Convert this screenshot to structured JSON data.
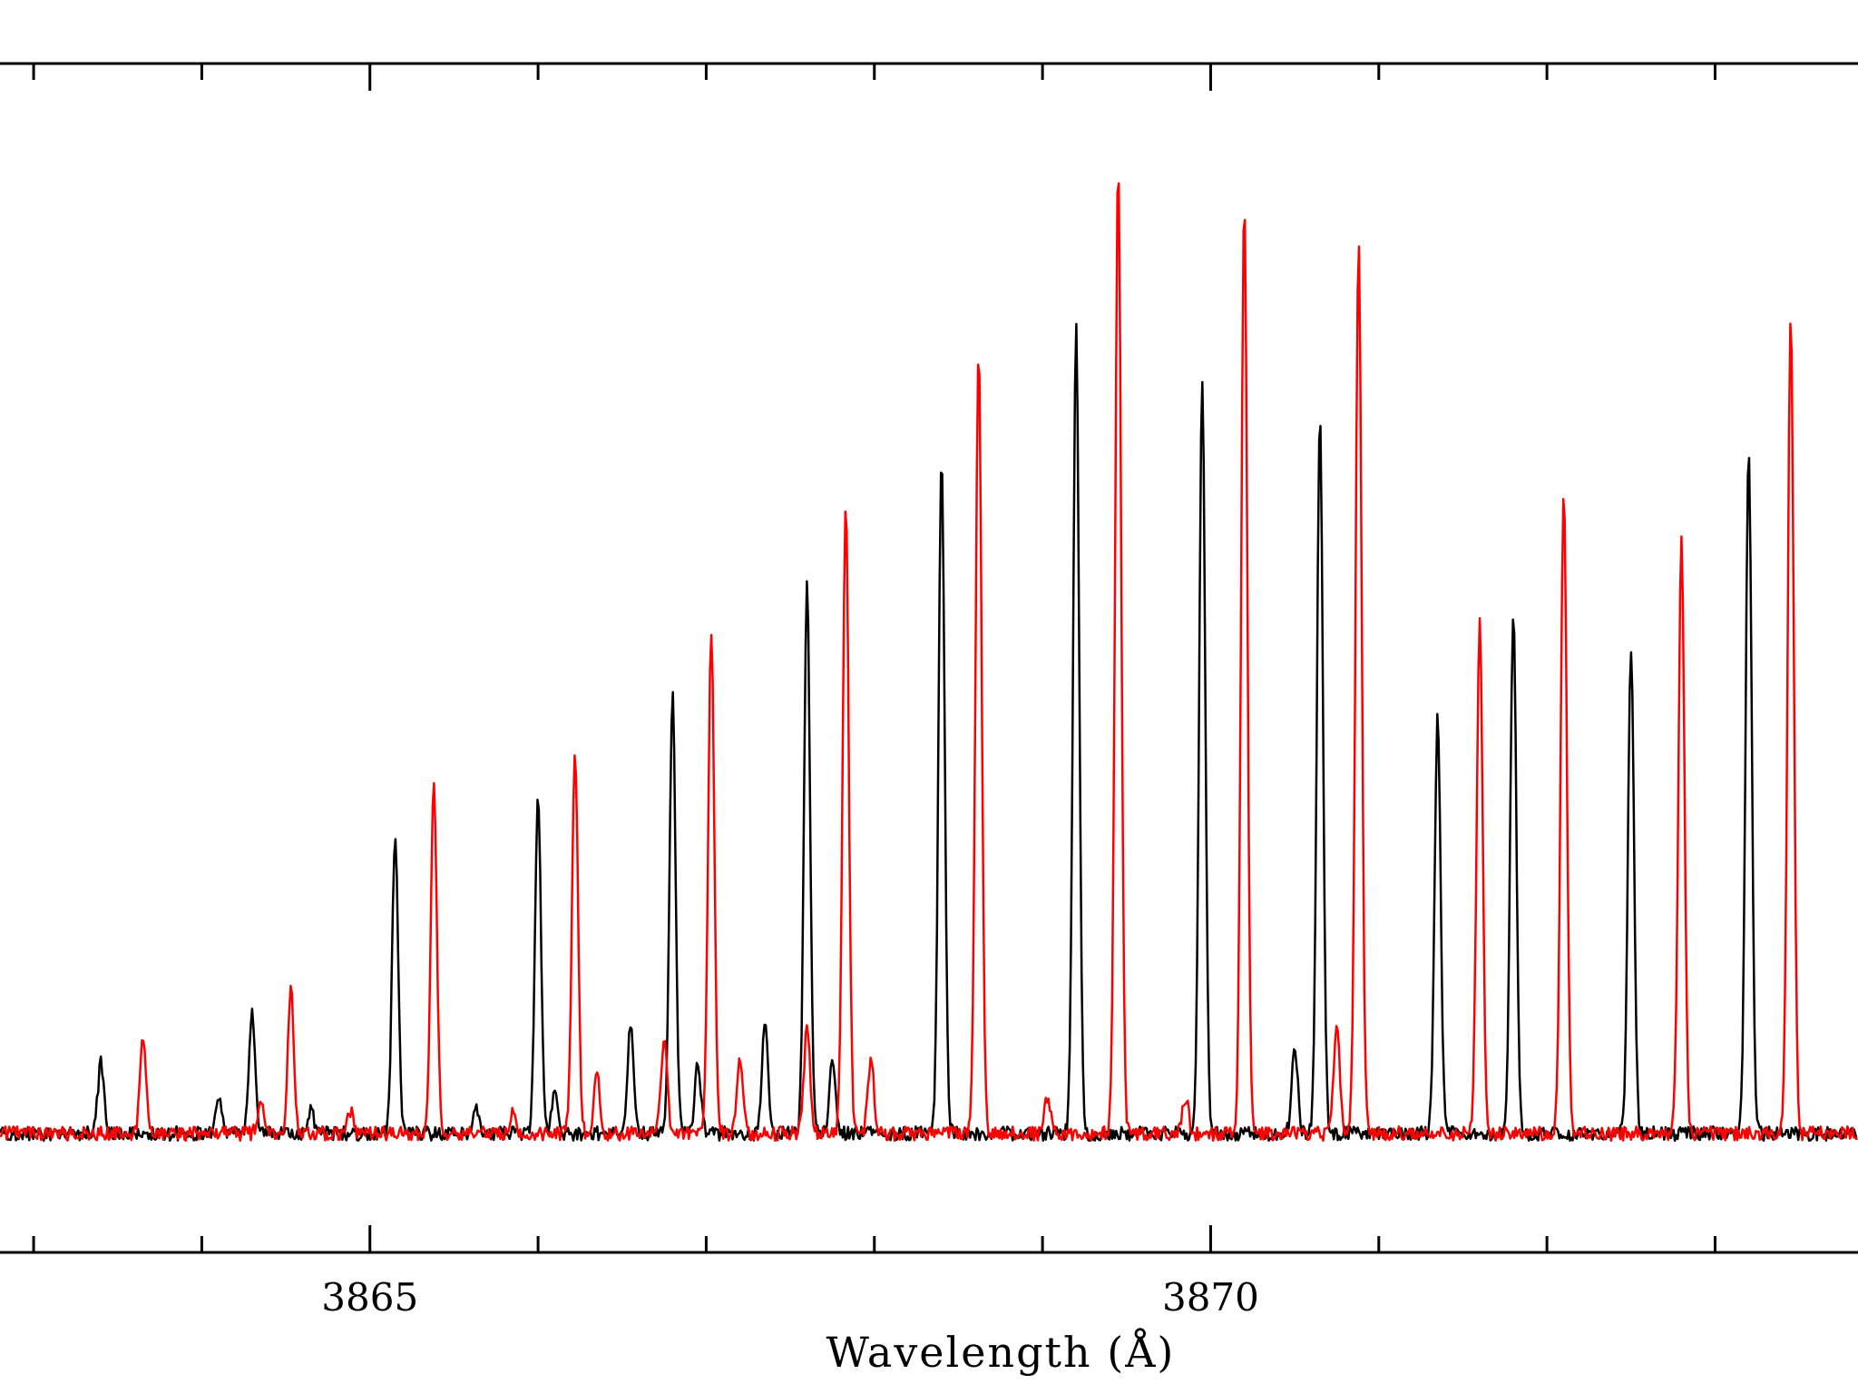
{
  "chart_data": {
    "type": "line",
    "xlabel": "Wavelength (Å)",
    "ylabel": "",
    "xlim": [
      3862.8,
      3873.85
    ],
    "ylim": [
      0,
      1.0
    ],
    "grid": false,
    "legend": "none",
    "x_major_ticks": [
      3865,
      3870
    ],
    "x_minor_ticks": [
      3863.0,
      3864.0,
      3866.0,
      3867.0,
      3868.0,
      3869.0,
      3871.0,
      3872.0,
      3873.0
    ],
    "baseline": 0.1,
    "series": [
      {
        "color": "#000000",
        "peaks": [
          {
            "x": 3863.4,
            "y": 0.16
          },
          {
            "x": 3864.1,
            "y": 0.13
          },
          {
            "x": 3864.3,
            "y": 0.2
          },
          {
            "x": 3864.65,
            "y": 0.12
          },
          {
            "x": 3865.15,
            "y": 0.35
          },
          {
            "x": 3865.63,
            "y": 0.12
          },
          {
            "x": 3866.0,
            "y": 0.38
          },
          {
            "x": 3866.1,
            "y": 0.14
          },
          {
            "x": 3866.55,
            "y": 0.19
          },
          {
            "x": 3866.8,
            "y": 0.47
          },
          {
            "x": 3866.95,
            "y": 0.16
          },
          {
            "x": 3867.35,
            "y": 0.19
          },
          {
            "x": 3867.6,
            "y": 0.56
          },
          {
            "x": 3867.75,
            "y": 0.16
          },
          {
            "x": 3868.4,
            "y": 0.67
          },
          {
            "x": 3869.2,
            "y": 0.78
          },
          {
            "x": 3869.95,
            "y": 0.73
          },
          {
            "x": 3870.5,
            "y": 0.17
          },
          {
            "x": 3870.65,
            "y": 0.7
          },
          {
            "x": 3871.35,
            "y": 0.45
          },
          {
            "x": 3871.8,
            "y": 0.54
          },
          {
            "x": 3872.5,
            "y": 0.51
          },
          {
            "x": 3873.2,
            "y": 0.68
          }
        ]
      },
      {
        "color": "#ff0000",
        "peaks": [
          {
            "x": 3863.65,
            "y": 0.18
          },
          {
            "x": 3864.35,
            "y": 0.13
          },
          {
            "x": 3864.53,
            "y": 0.22
          },
          {
            "x": 3864.88,
            "y": 0.12
          },
          {
            "x": 3865.38,
            "y": 0.39
          },
          {
            "x": 3865.85,
            "y": 0.12
          },
          {
            "x": 3866.22,
            "y": 0.42
          },
          {
            "x": 3866.35,
            "y": 0.15
          },
          {
            "x": 3866.75,
            "y": 0.18
          },
          {
            "x": 3867.03,
            "y": 0.52
          },
          {
            "x": 3867.2,
            "y": 0.16
          },
          {
            "x": 3867.6,
            "y": 0.19
          },
          {
            "x": 3867.83,
            "y": 0.63
          },
          {
            "x": 3867.98,
            "y": 0.16
          },
          {
            "x": 3868.62,
            "y": 0.76
          },
          {
            "x": 3869.03,
            "y": 0.13
          },
          {
            "x": 3869.45,
            "y": 0.91
          },
          {
            "x": 3869.85,
            "y": 0.13
          },
          {
            "x": 3870.2,
            "y": 0.88
          },
          {
            "x": 3870.75,
            "y": 0.19
          },
          {
            "x": 3870.88,
            "y": 0.85
          },
          {
            "x": 3871.6,
            "y": 0.53
          },
          {
            "x": 3872.1,
            "y": 0.64
          },
          {
            "x": 3872.8,
            "y": 0.6
          },
          {
            "x": 3873.45,
            "y": 0.79
          }
        ]
      }
    ]
  }
}
